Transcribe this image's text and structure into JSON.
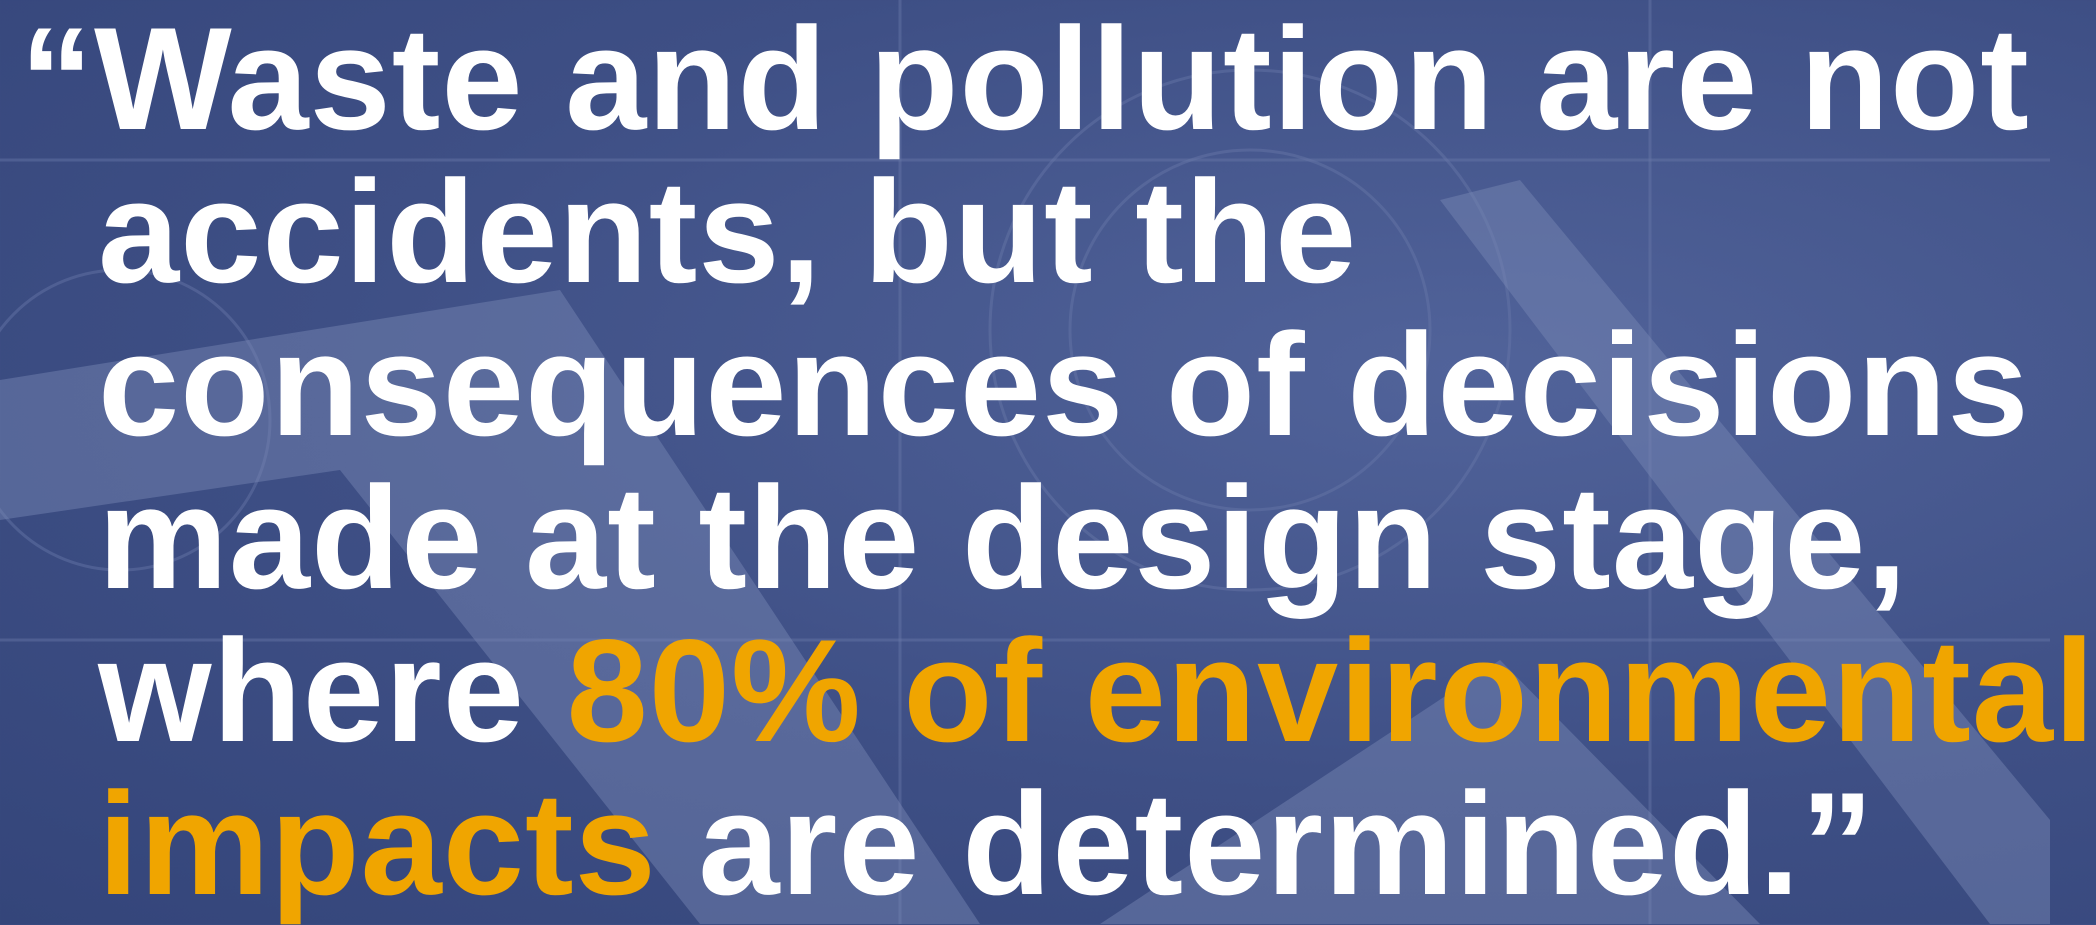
{
  "quote": {
    "lines": [
      [
        {
          "text": "“Waste and pollution are not",
          "color": "#ffffff"
        }
      ],
      [
        {
          "text": "accidents, but the",
          "color": "#ffffff"
        }
      ],
      [
        {
          "text": "consequences of decisions",
          "color": "#ffffff"
        }
      ],
      [
        {
          "text": "made at the design stage,",
          "color": "#ffffff"
        }
      ],
      [
        {
          "text": "where ",
          "color": "#ffffff"
        },
        {
          "text": "80% of environmental",
          "color": "#f0a500"
        }
      ],
      [
        {
          "text": "impacts",
          "color": "#f0a500"
        },
        {
          "text": " are determined.”",
          "color": "#ffffff"
        }
      ]
    ]
  }
}
